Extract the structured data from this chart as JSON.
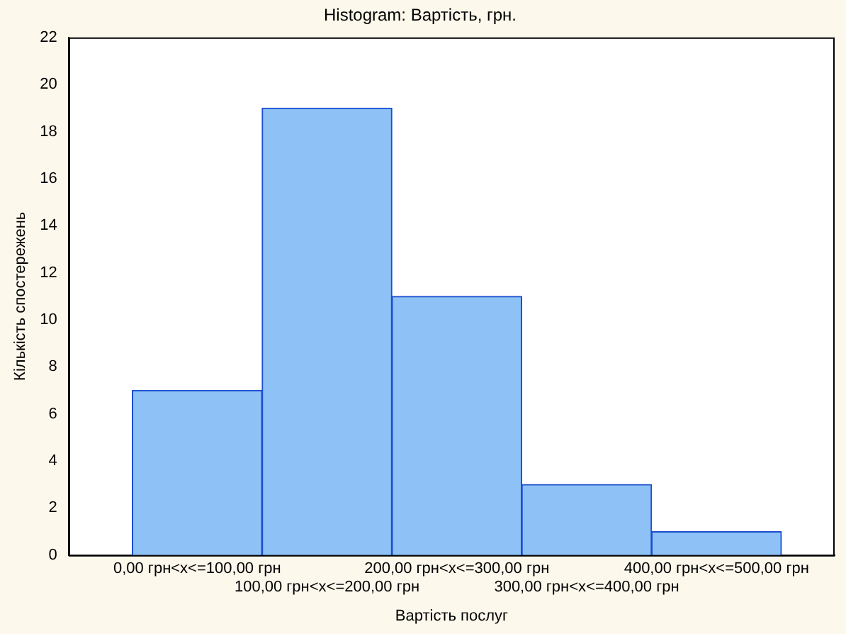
{
  "chart_data": {
    "type": "bar",
    "title": "Histogram: Вартість, грн.",
    "xlabel": "Вартість послуг",
    "ylabel": "Кількість спостережень",
    "categories": [
      "0,00 грн<x<=100,00 грн",
      "100,00 грн<x<=200,00 грн",
      "200,00 грн<x<=300,00 грн",
      "300,00 грн<x<=400,00 грн",
      "400,00 грн<x<=500,00 грн"
    ],
    "values": [
      7,
      19,
      11,
      3,
      1
    ],
    "color": "#8ec2f6",
    "ylim": [
      0,
      22
    ],
    "yticks": [
      0,
      2,
      4,
      6,
      8,
      10,
      12,
      14,
      16,
      18,
      20,
      22
    ],
    "grid": false,
    "legend": false
  }
}
